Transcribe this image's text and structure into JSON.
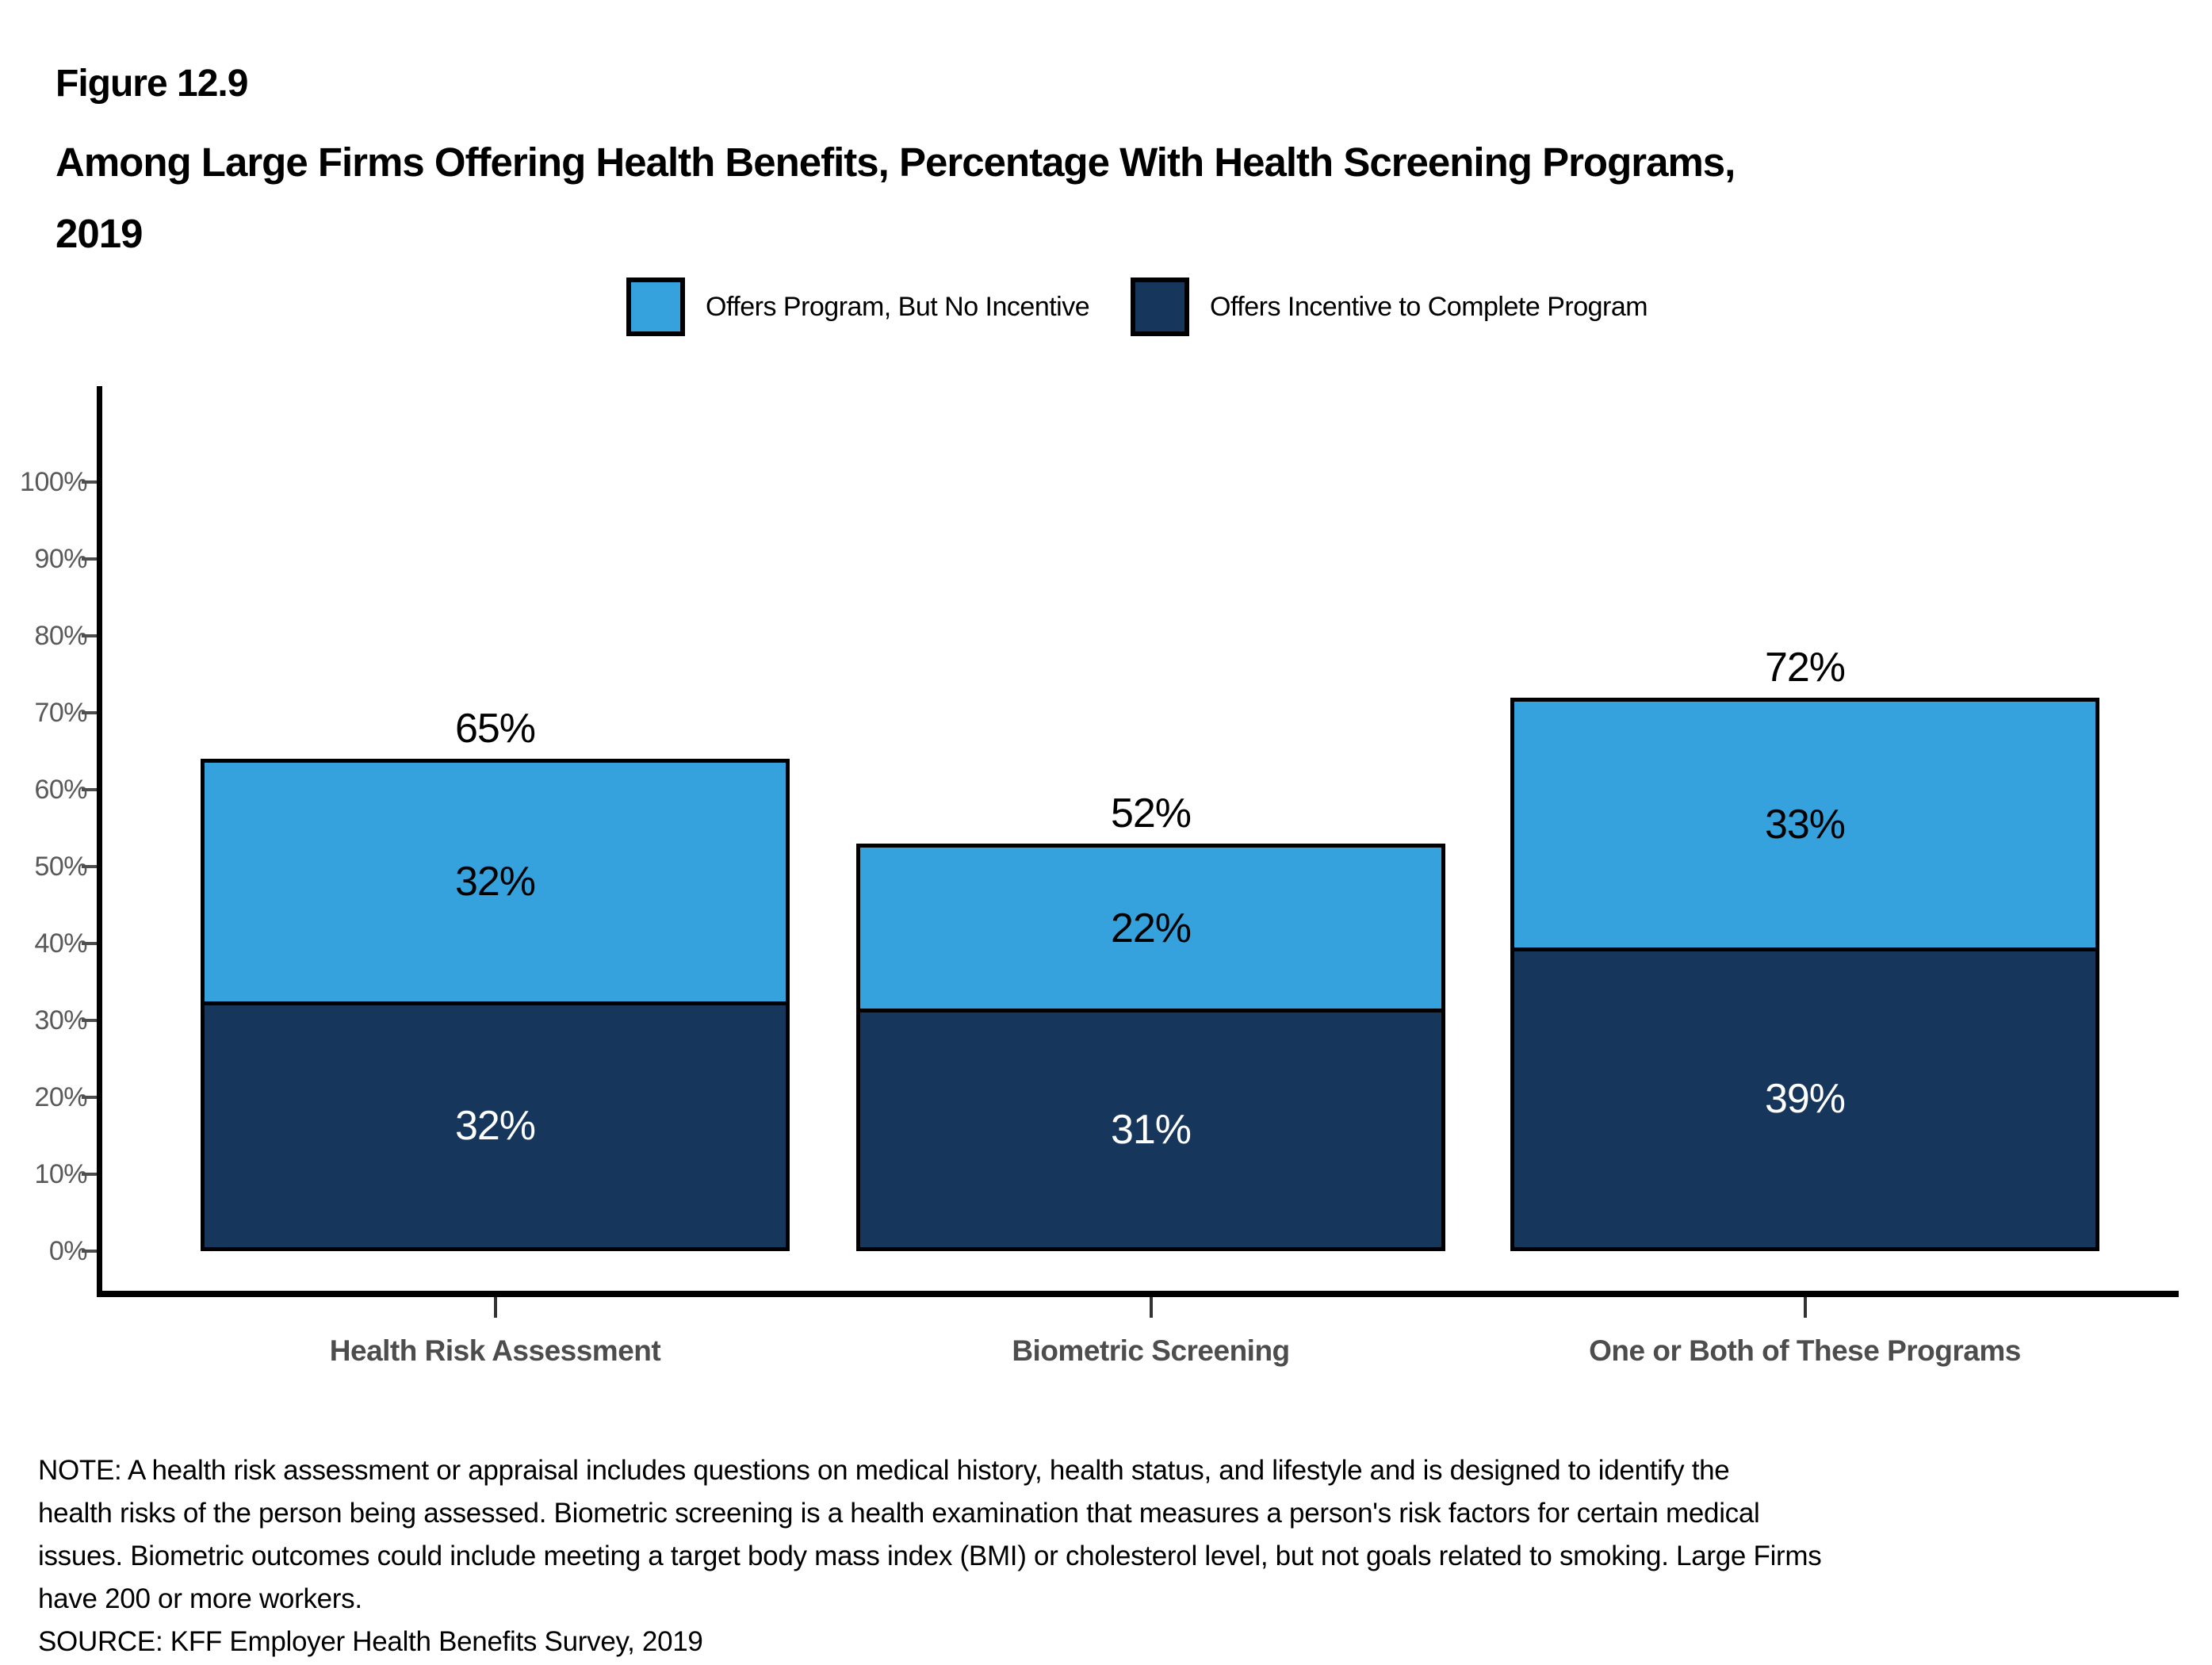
{
  "figure": {
    "label": "Figure 12.9",
    "title_line1": "Among Large Firms Offering Health Benefits, Percentage With Health Screening Programs,",
    "title_line2": "2019"
  },
  "legend": [
    {
      "label": "Offers Program, But No Incentive",
      "color": "#35A1DD"
    },
    {
      "label": "Offers Incentive to Complete Program",
      "color": "#16365B"
    }
  ],
  "chart_data": {
    "type": "bar",
    "stacked": true,
    "title": "Among Large Firms Offering Health Benefits, Percentage With Health Screening Programs, 2019",
    "categories": [
      "Health Risk Assessment",
      "Biometric Screening",
      "One or Both of These Programs"
    ],
    "series": [
      {
        "name": "Offers Incentive to Complete Program",
        "color": "#16365B",
        "values": [
          32,
          31,
          39
        ],
        "label_color": "#ffffff",
        "labels": [
          "32%",
          "31%",
          "39%"
        ]
      },
      {
        "name": "Offers Program, But No Incentive",
        "color": "#35A1DD",
        "values": [
          32,
          22,
          33
        ],
        "label_color": "#000000",
        "labels": [
          "32%",
          "22%",
          "33%"
        ]
      }
    ],
    "totals": [
      "65%",
      "52%",
      "72%"
    ],
    "xlabel": "",
    "ylabel": "",
    "y_ticks": [
      "0%",
      "10%",
      "20%",
      "30%",
      "40%",
      "50%",
      "60%",
      "70%",
      "80%",
      "90%",
      "100%"
    ],
    "ylim": [
      0,
      110
    ],
    "grid": false,
    "legend_position": "top"
  },
  "notes": {
    "line1": "NOTE: A health risk assessment or appraisal includes questions on medical history, health status, and lifestyle and is designed to identify the",
    "line2": "health risks of the person being assessed.  Biometric screening is a health examination that measures a person's risk factors for certain medical",
    "line3": "issues. Biometric outcomes could include meeting a target body mass index (BMI) or cholesterol level, but not goals related to smoking.  Large Firms",
    "line4": "have 200 or more workers.",
    "source": "SOURCE: KFF Employer Health Benefits Survey, 2019"
  }
}
